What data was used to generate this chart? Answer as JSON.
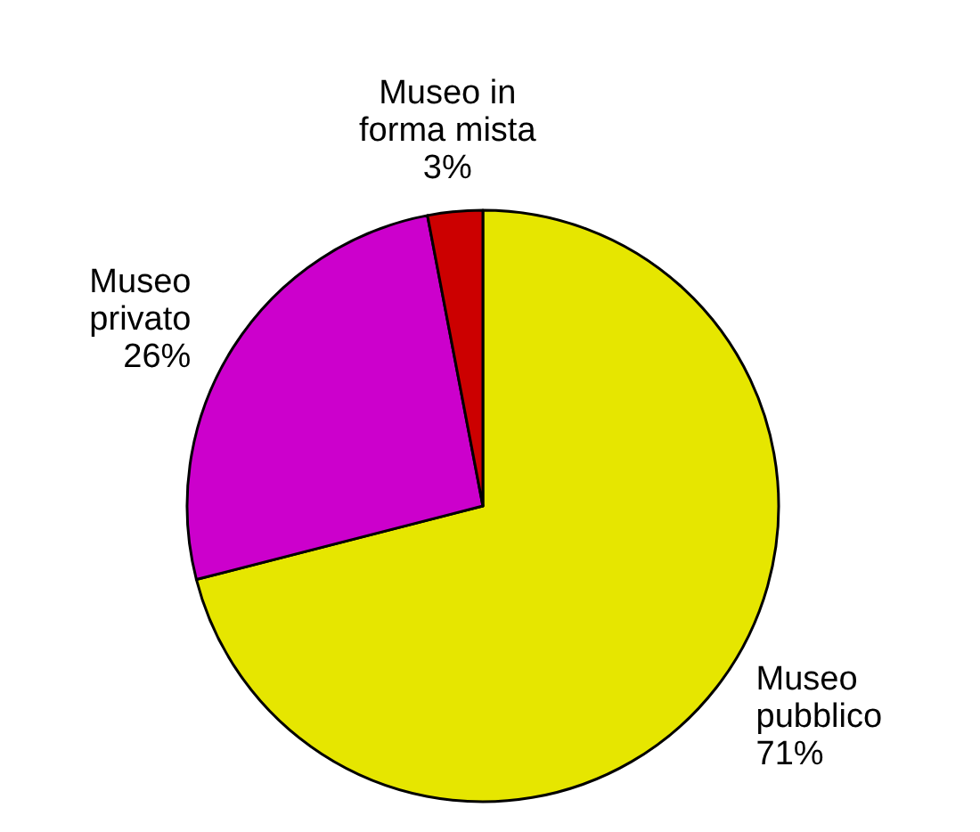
{
  "chart_data": {
    "type": "pie",
    "categories": [
      "Museo\npubblico",
      "Museo\nprivato",
      "Museo in\nforma mista"
    ],
    "values": [
      71,
      26,
      3
    ],
    "colors": [
      "#e6e600",
      "#cc00cc",
      "#cc0000"
    ],
    "value_labels": [
      "71%",
      "26%",
      "3%"
    ]
  }
}
